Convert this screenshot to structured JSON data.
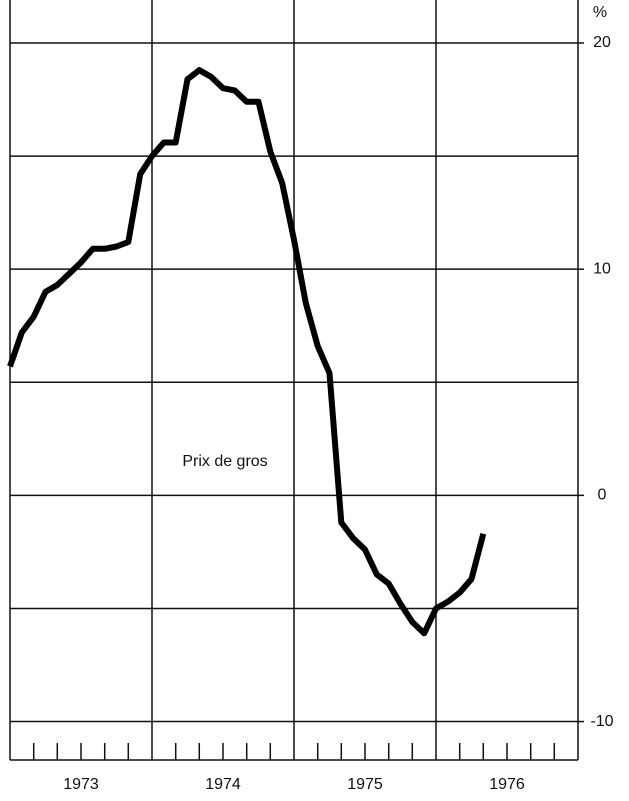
{
  "chart_data": {
    "type": "line",
    "unit_label": "%",
    "annotation": "Prix de gros",
    "x": [
      1973.0,
      1973.083,
      1973.167,
      1973.25,
      1973.333,
      1973.417,
      1973.5,
      1973.583,
      1973.667,
      1973.75,
      1973.833,
      1973.917,
      1974.0,
      1974.083,
      1974.167,
      1974.25,
      1974.333,
      1974.417,
      1974.5,
      1974.583,
      1974.667,
      1974.75,
      1974.833,
      1974.917,
      1975.0,
      1975.083,
      1975.167,
      1975.25,
      1975.333,
      1975.417,
      1975.5,
      1975.583,
      1975.667,
      1975.75,
      1975.833,
      1975.917,
      1976.0,
      1976.083,
      1976.167,
      1976.25,
      1976.333
    ],
    "series": [
      {
        "name": "Prix de gros",
        "color": "#000000",
        "values": [
          5.7,
          7.2,
          7.9,
          9.0,
          9.3,
          9.8,
          10.3,
          10.9,
          10.9,
          11.0,
          11.2,
          14.2,
          15.0,
          15.6,
          15.6,
          18.4,
          18.8,
          18.5,
          18.0,
          17.9,
          17.4,
          17.4,
          15.2,
          13.8,
          11.3,
          8.5,
          6.6,
          5.4,
          -1.2,
          -1.9,
          -2.4,
          -3.5,
          -3.9,
          -4.8,
          -5.6,
          -6.1,
          -5.0,
          -4.7,
          -4.3,
          -3.7,
          -1.7
        ]
      }
    ],
    "xlim": [
      1973,
      1977
    ],
    "xticks": [
      {
        "value": 1973.5,
        "label": "1973"
      },
      {
        "value": 1974.5,
        "label": "1974"
      },
      {
        "value": 1975.5,
        "label": "1975"
      },
      {
        "value": 1976.5,
        "label": "1976"
      }
    ],
    "x_grid_lines": [
      1974,
      1975,
      1976
    ],
    "x_minor_ticks": [
      1973.167,
      1973.333,
      1973.5,
      1973.667,
      1973.833,
      1974.167,
      1974.333,
      1974.5,
      1974.667,
      1974.833,
      1975.167,
      1975.333,
      1975.5,
      1975.667,
      1975.833,
      1976.167,
      1976.333,
      1976.5,
      1976.667,
      1976.833
    ],
    "ylim": [
      -11.7,
      21.9
    ],
    "yticks": [
      20,
      10,
      0,
      -10
    ],
    "y_grid_lines": [
      20,
      15,
      10,
      5,
      0,
      -5,
      -10
    ],
    "grid": true
  }
}
